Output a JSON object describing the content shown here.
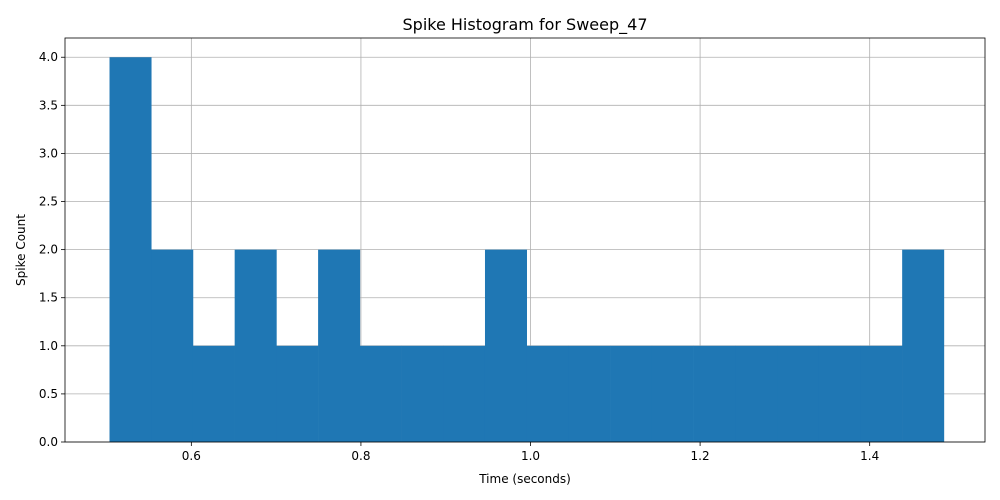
{
  "chart_data": {
    "type": "bar",
    "title": "Spike Histogram for Sweep_47",
    "xlabel": "Time (seconds)",
    "ylabel": "Spike Count",
    "xlim": [
      0.451,
      1.536
    ],
    "ylim": [
      0,
      4.2
    ],
    "xticks": [
      0.6,
      0.8,
      1.0,
      1.2,
      1.4
    ],
    "xtick_labels": [
      "0.6",
      "0.8",
      "1.0",
      "1.2",
      "1.4"
    ],
    "yticks": [
      0,
      0.5,
      1,
      1.5,
      2,
      2.5,
      3,
      3.5,
      4
    ],
    "ytick_labels": [
      "0.0",
      "0.5",
      "1.0",
      "1.5",
      "2.0",
      "2.5",
      "3.0",
      "3.5",
      "4.0"
    ],
    "grid": true,
    "color": "#1f77b4",
    "bin_edges": [
      0.5035,
      0.5527,
      0.6019,
      0.6511,
      0.7003,
      0.7495,
      0.7987,
      0.8479,
      0.8971,
      0.9463,
      0.9955,
      1.0447,
      1.0939,
      1.1431,
      1.1923,
      1.2415,
      1.2907,
      1.3399,
      1.3891,
      1.4383,
      1.4875
    ],
    "values": [
      4,
      2,
      1,
      2,
      1,
      2,
      1,
      1,
      1,
      2,
      1,
      1,
      1,
      1,
      1,
      1,
      1,
      1,
      1,
      2
    ]
  }
}
